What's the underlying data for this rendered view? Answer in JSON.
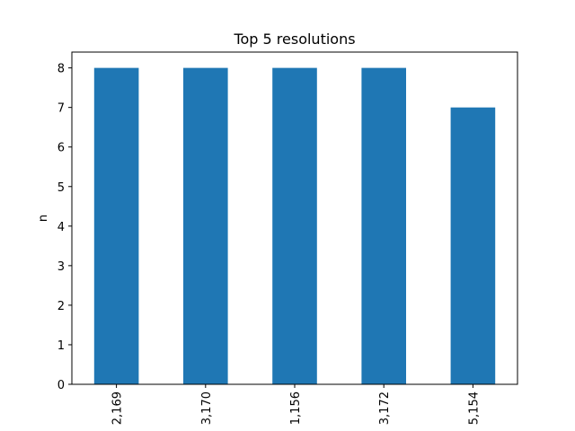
{
  "chart_data": {
    "type": "bar",
    "title": "Top 5 resolutions",
    "xlabel": "",
    "ylabel": "n",
    "categories": [
      "2,169",
      "3,170",
      "1,156",
      "3,172",
      "5,154"
    ],
    "values": [
      8,
      8,
      8,
      8,
      7
    ],
    "ylim": [
      0,
      8.4
    ],
    "yticks": [
      0,
      1,
      2,
      3,
      4,
      5,
      6,
      7,
      8
    ],
    "bar_color": "#1f77b4",
    "grid": false,
    "legend": "none"
  }
}
